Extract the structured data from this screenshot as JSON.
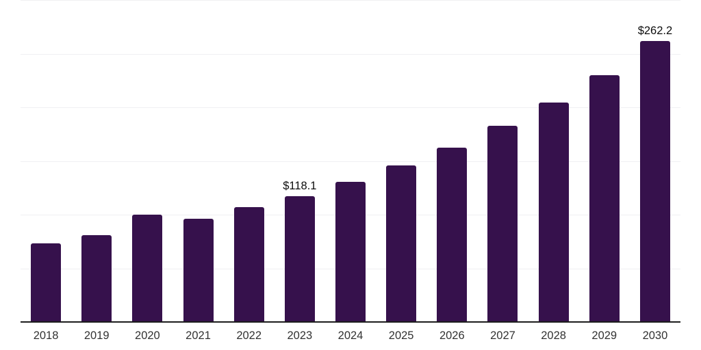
{
  "chart_data": {
    "type": "bar",
    "title": "",
    "xlabel": "",
    "ylabel": "",
    "categories": [
      "2018",
      "2019",
      "2020",
      "2021",
      "2022",
      "2023",
      "2024",
      "2025",
      "2026",
      "2027",
      "2028",
      "2029",
      "2030"
    ],
    "values": [
      73.7,
      81.5,
      100.7,
      96.9,
      107.4,
      118.1,
      131.4,
      146.5,
      163.2,
      183.6,
      205.2,
      230.7,
      262.2
    ],
    "data_labels": [
      "",
      "",
      "",
      "",
      "",
      "$118.1",
      "",
      "",
      "",
      "",
      "",
      "",
      "$262.2"
    ],
    "ylim": [
      0,
      300
    ],
    "gridline_step": 50,
    "grid": true,
    "y_tick_labels_visible": false,
    "legend_position": "none",
    "bar_color": "#36114C",
    "axis_line_color": "#1C1C1C",
    "gridline_color": "#F0F0F2",
    "x_label_color": "#323232",
    "data_label_color": "#0D0D0D",
    "background_color": "#FFFFFF"
  }
}
